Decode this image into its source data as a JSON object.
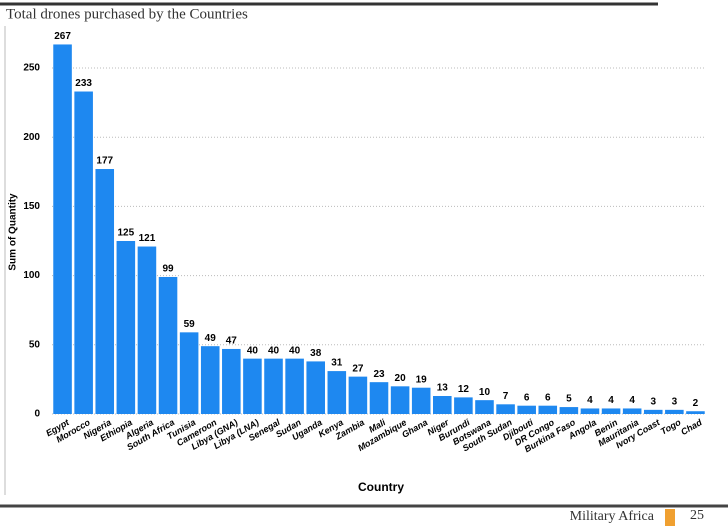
{
  "header": {
    "title": "Total drones purchased by the Countries"
  },
  "chart_data": {
    "type": "bar",
    "categories": [
      "Egypt",
      "Morocco",
      "Nigeria",
      "Ethiopia",
      "Algeria",
      "South Africa",
      "Tunisia",
      "Cameroon",
      "Libya (GNA)",
      "Libya (LNA)",
      "Senegal",
      "Sudan",
      "Uganda",
      "Kenya",
      "Zambia",
      "Mali",
      "Mozambique",
      "Ghana",
      "Niger",
      "Burundi",
      "Botswana",
      "South Sudan",
      "Djibouti",
      "DR Congo",
      "Burkina Faso",
      "Angola",
      "Benin",
      "Mauritania",
      "Ivory Coast",
      "Togo",
      "Chad"
    ],
    "values": [
      267,
      233,
      177,
      125,
      121,
      99,
      59,
      49,
      47,
      40,
      40,
      40,
      38,
      31,
      27,
      23,
      20,
      19,
      13,
      12,
      10,
      7,
      6,
      6,
      5,
      4,
      4,
      4,
      3,
      3,
      2
    ],
    "color": "#1e88f0",
    "xlabel": "Country",
    "ylabel": "Sum of Quantity",
    "ylim": [
      0,
      276
    ],
    "yticks": [
      0,
      50,
      100,
      150,
      200,
      250
    ],
    "grid": true
  },
  "footer": {
    "source": "Military Africa",
    "page": "25"
  }
}
